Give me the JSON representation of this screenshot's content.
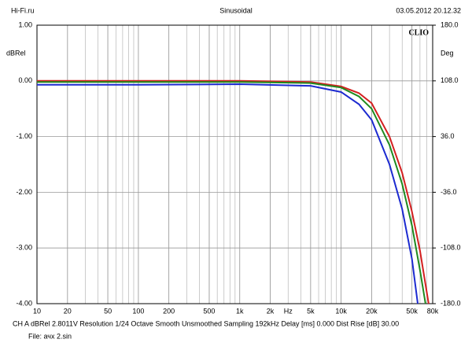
{
  "chart_data": {
    "type": "line",
    "header_left": "Hi-Fi.ru",
    "title": "Sinusoidal",
    "header_right": "03.05.2012 20.12.32",
    "brand": "CLIO",
    "y_label": "dBRel",
    "y2_label": "Deg",
    "x_label": "Hz",
    "footer": "CH A  dBRel 2.8011V  Resolution 1/24 Octave  Smooth Unsmoothed  Sampling 192kHz  Delay [ms] 0.000  Dist Rise [dB] 30.00",
    "file": "File: ачх 2.sin",
    "x_scale": "log",
    "minor_grid": true,
    "xlim": [
      10,
      80000
    ],
    "xticks": [
      10,
      20,
      50,
      100,
      200,
      500,
      {
        "value": 1000,
        "label": "1k"
      },
      {
        "value": 2000,
        "label": "2k"
      },
      {
        "value": 5000,
        "label": "5k"
      },
      {
        "value": 10000,
        "label": "10k"
      },
      {
        "value": 20000,
        "label": "20k"
      },
      {
        "value": 50000,
        "label": "50k"
      },
      {
        "value": 80000,
        "label": "80k"
      }
    ],
    "ylim": [
      -4,
      1
    ],
    "yticks": [
      {
        "value": 1,
        "label": "1.00"
      },
      {
        "value": 0,
        "label": "0.00"
      },
      {
        "value": -1,
        "label": "-1.00"
      },
      {
        "value": -2,
        "label": "-2.00"
      },
      {
        "value": -3,
        "label": "-3.00"
      },
      {
        "value": -4,
        "label": "-4.00"
      }
    ],
    "y2lim": [
      -180,
      180
    ],
    "y2ticks": [
      {
        "value": 180,
        "label": "180.0"
      },
      {
        "value": 108,
        "label": "108.0"
      },
      {
        "value": 36,
        "label": "36.0"
      },
      {
        "value": -36,
        "label": "-36.0"
      },
      {
        "value": -108,
        "label": "-108.0"
      },
      {
        "value": -180,
        "label": "-180.0"
      }
    ],
    "grid": true,
    "series": [
      {
        "color": "#d42020",
        "x": [
          10,
          100,
          1000,
          5000,
          10000,
          15000,
          20000,
          30000,
          40000,
          50000,
          60000,
          73000
        ],
        "values": [
          0.0,
          0.0,
          0.0,
          -0.02,
          -0.1,
          -0.22,
          -0.4,
          -1.0,
          -1.65,
          -2.35,
          -3.05,
          -4.0
        ]
      },
      {
        "color": "#1f8a1f",
        "x": [
          10,
          100,
          1000,
          5000,
          10000,
          15000,
          20000,
          30000,
          40000,
          50000,
          60000,
          68000
        ],
        "values": [
          -0.02,
          -0.02,
          -0.02,
          -0.04,
          -0.12,
          -0.28,
          -0.5,
          -1.15,
          -1.85,
          -2.6,
          -3.4,
          -4.0
        ]
      },
      {
        "color": "#1c2ad0",
        "x": [
          10,
          100,
          1000,
          5000,
          10000,
          15000,
          20000,
          30000,
          40000,
          50000,
          57000
        ],
        "values": [
          -0.07,
          -0.07,
          -0.06,
          -0.09,
          -0.2,
          -0.42,
          -0.7,
          -1.5,
          -2.3,
          -3.2,
          -4.0
        ]
      }
    ]
  }
}
